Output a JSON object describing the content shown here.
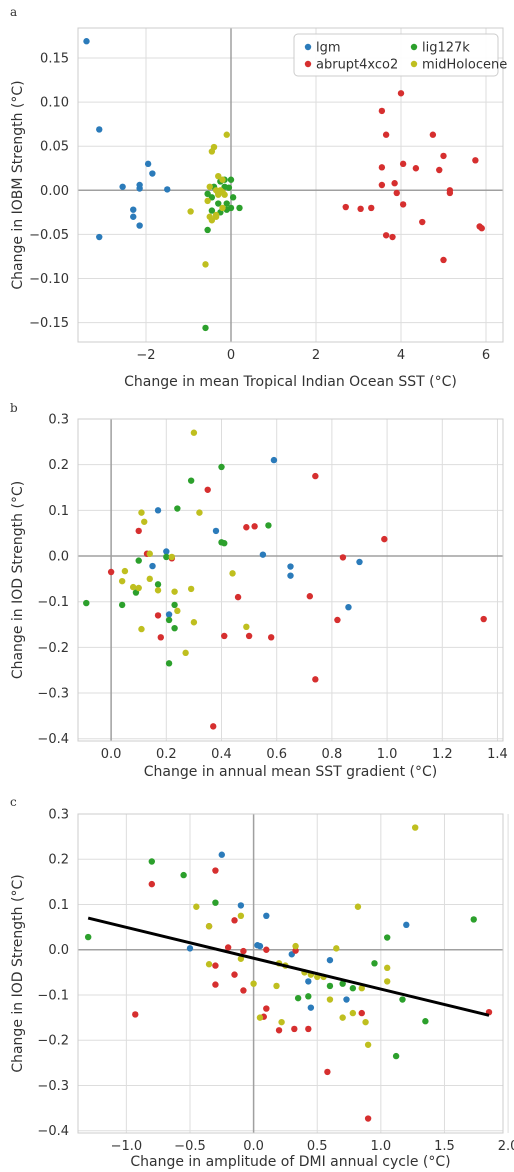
{
  "colors": {
    "lgm": "#2b7bba",
    "abrupt4xco2": "#d62f2f",
    "lig127k": "#2ca02c",
    "midHolocene": "#bfbf1f",
    "fit_line": "#000000",
    "grid": "#dddddd",
    "zero_line": "#a0a0a0"
  },
  "chart_data": [
    {
      "panel_label": "a",
      "type": "scatter",
      "xlabel": "Change in mean Tropical Indian Ocean SST (°C)",
      "ylabel": "Change in IOBM Strength (°C)",
      "xlim": [
        -3.6,
        6.4
      ],
      "ylim": [
        -0.172,
        0.184
      ],
      "xticks": [
        -2,
        0,
        2,
        4,
        6
      ],
      "xtick_labels": [
        "−2",
        "0",
        "2",
        "4",
        "6"
      ],
      "yticks": [
        -0.15,
        -0.1,
        -0.05,
        0.0,
        0.05,
        0.1,
        0.15
      ],
      "ytick_labels": [
        "−0.15",
        "−0.10",
        "−0.05",
        "0.00",
        "0.05",
        "0.10",
        "0.15"
      ],
      "grid": true,
      "legend": {
        "placement": "top-right",
        "columns": 2,
        "order": [
          "lgm",
          "lig127k",
          "abrupt4xco2",
          "midHolocene"
        ]
      },
      "series": [
        {
          "name": "lgm",
          "color_key": "lgm",
          "points": [
            [
              -3.4,
              0.169
            ],
            [
              -3.1,
              0.069
            ],
            [
              -3.1,
              -0.053
            ],
            [
              -2.55,
              0.004
            ],
            [
              -2.3,
              -0.022
            ],
            [
              -2.3,
              -0.03
            ],
            [
              -2.15,
              0.006
            ],
            [
              -2.15,
              0.002
            ],
            [
              -2.15,
              -0.04
            ],
            [
              -1.95,
              0.03
            ],
            [
              -1.85,
              0.019
            ],
            [
              -1.5,
              0.001
            ]
          ]
        },
        {
          "name": "abrupt4xco2",
          "color_key": "abrupt4xco2",
          "points": [
            [
              4.0,
              0.11
            ],
            [
              3.55,
              0.09
            ],
            [
              3.65,
              0.063
            ],
            [
              4.75,
              0.063
            ],
            [
              5.0,
              0.039
            ],
            [
              5.75,
              0.034
            ],
            [
              4.05,
              0.03
            ],
            [
              3.55,
              0.026
            ],
            [
              4.35,
              0.025
            ],
            [
              4.9,
              0.023
            ],
            [
              3.85,
              0.008
            ],
            [
              3.55,
              0.006
            ],
            [
              5.15,
              0.0
            ],
            [
              5.15,
              -0.003
            ],
            [
              3.9,
              -0.003
            ],
            [
              4.05,
              -0.016
            ],
            [
              2.7,
              -0.019
            ],
            [
              3.05,
              -0.021
            ],
            [
              3.3,
              -0.02
            ],
            [
              4.5,
              -0.036
            ],
            [
              5.85,
              -0.041
            ],
            [
              5.9,
              -0.043
            ],
            [
              3.65,
              -0.051
            ],
            [
              3.8,
              -0.053
            ],
            [
              5.0,
              -0.079
            ]
          ]
        },
        {
          "name": "lig127k",
          "color_key": "lig127k",
          "points": [
            [
              -0.25,
              0.01
            ],
            [
              -0.15,
              0.012
            ],
            [
              0.0,
              0.012
            ],
            [
              -0.4,
              0.004
            ],
            [
              -0.15,
              0.004
            ],
            [
              -0.05,
              0.003
            ],
            [
              -0.55,
              -0.004
            ],
            [
              -0.45,
              -0.008
            ],
            [
              -0.3,
              -0.003
            ],
            [
              0.05,
              -0.008
            ],
            [
              -0.3,
              -0.015
            ],
            [
              -0.1,
              -0.015
            ],
            [
              -0.45,
              -0.023
            ],
            [
              0.0,
              -0.02
            ],
            [
              0.2,
              -0.02
            ],
            [
              -0.25,
              -0.025
            ],
            [
              -0.1,
              -0.022
            ],
            [
              -0.55,
              -0.045
            ],
            [
              -0.6,
              -0.156
            ]
          ]
        },
        {
          "name": "midHolocene",
          "color_key": "midHolocene",
          "points": [
            [
              -0.1,
              0.063
            ],
            [
              -0.4,
              0.049
            ],
            [
              -0.45,
              0.044
            ],
            [
              -0.5,
              0.004
            ],
            [
              -0.3,
              0.016
            ],
            [
              -0.2,
              0.012
            ],
            [
              -0.35,
              0.0
            ],
            [
              -0.55,
              -0.012
            ],
            [
              -0.3,
              -0.005
            ],
            [
              -0.15,
              -0.005
            ],
            [
              -0.2,
              -0.002
            ],
            [
              -0.25,
              0.0
            ],
            [
              -0.95,
              -0.024
            ],
            [
              -0.5,
              -0.03
            ],
            [
              -0.35,
              -0.028
            ],
            [
              -0.45,
              -0.034
            ],
            [
              -0.35,
              -0.03
            ],
            [
              -0.2,
              -0.02
            ],
            [
              -0.6,
              -0.084
            ]
          ]
        }
      ]
    },
    {
      "panel_label": "b",
      "type": "scatter",
      "xlabel": "Change in annual mean SST gradient (°C)",
      "ylabel": "Change in IOD Strength (°C)",
      "xlim": [
        -0.12,
        1.42
      ],
      "ylim": [
        -0.405,
        0.3
      ],
      "xticks": [
        0.0,
        0.2,
        0.4,
        0.6,
        0.8,
        1.0,
        1.2,
        1.4
      ],
      "xtick_labels": [
        "0.0",
        "0.2",
        "0.4",
        "0.6",
        "0.8",
        "1.0",
        "1.2",
        "1.4"
      ],
      "yticks": [
        -0.4,
        -0.3,
        -0.2,
        -0.1,
        0.0,
        0.1,
        0.2,
        0.3
      ],
      "ytick_labels": [
        "−0.4",
        "−0.3",
        "−0.2",
        "−0.1",
        "0.0",
        "0.1",
        "0.2",
        "0.3"
      ],
      "grid": true,
      "series": [
        {
          "name": "lgm",
          "color_key": "lgm",
          "points": [
            [
              0.59,
              0.21
            ],
            [
              0.17,
              0.1
            ],
            [
              0.38,
              0.055
            ],
            [
              0.55,
              0.003
            ],
            [
              0.2,
              0.01
            ],
            [
              0.15,
              -0.022
            ],
            [
              0.65,
              -0.023
            ],
            [
              0.65,
              -0.043
            ],
            [
              0.21,
              -0.128
            ],
            [
              0.9,
              -0.013
            ],
            [
              0.86,
              -0.112
            ]
          ]
        },
        {
          "name": "abrupt4xco2",
          "color_key": "abrupt4xco2",
          "points": [
            [
              0.35,
              0.145
            ],
            [
              0.74,
              0.175
            ],
            [
              0.1,
              0.055
            ],
            [
              0.49,
              0.063
            ],
            [
              0.99,
              0.037
            ],
            [
              0.52,
              0.065
            ],
            [
              0.13,
              0.005
            ],
            [
              0.22,
              -0.005
            ],
            [
              0.0,
              -0.035
            ],
            [
              0.17,
              -0.13
            ],
            [
              0.18,
              -0.178
            ],
            [
              0.46,
              -0.09
            ],
            [
              0.41,
              -0.175
            ],
            [
              0.5,
              -0.175
            ],
            [
              0.58,
              -0.178
            ],
            [
              0.72,
              -0.088
            ],
            [
              0.84,
              -0.003
            ],
            [
              0.82,
              -0.14
            ],
            [
              0.74,
              -0.27
            ],
            [
              0.37,
              -0.373
            ],
            [
              1.35,
              -0.138
            ]
          ]
        },
        {
          "name": "lig127k",
          "color_key": "lig127k",
          "points": [
            [
              0.4,
              0.195
            ],
            [
              0.29,
              0.165
            ],
            [
              0.24,
              0.104
            ],
            [
              0.4,
              0.03
            ],
            [
              0.41,
              0.028
            ],
            [
              0.57,
              0.067
            ],
            [
              0.2,
              -0.002
            ],
            [
              0.1,
              -0.01
            ],
            [
              0.09,
              -0.08
            ],
            [
              0.17,
              -0.062
            ],
            [
              0.21,
              -0.14
            ],
            [
              0.23,
              -0.158
            ],
            [
              0.23,
              -0.107
            ],
            [
              0.04,
              -0.107
            ],
            [
              -0.09,
              -0.103
            ],
            [
              0.21,
              -0.235
            ]
          ]
        },
        {
          "name": "midHolocene",
          "color_key": "midHolocene",
          "points": [
            [
              0.3,
              0.27
            ],
            [
              0.12,
              0.075
            ],
            [
              0.11,
              0.095
            ],
            [
              0.32,
              0.095
            ],
            [
              0.14,
              0.005
            ],
            [
              0.22,
              -0.002
            ],
            [
              0.05,
              -0.033
            ],
            [
              0.04,
              -0.055
            ],
            [
              0.08,
              -0.068
            ],
            [
              0.14,
              -0.05
            ],
            [
              0.17,
              -0.075
            ],
            [
              0.1,
              -0.07
            ],
            [
              0.23,
              -0.078
            ],
            [
              0.29,
              -0.072
            ],
            [
              0.44,
              -0.038
            ],
            [
              0.11,
              -0.16
            ],
            [
              0.24,
              -0.12
            ],
            [
              0.3,
              -0.145
            ],
            [
              0.49,
              -0.155
            ],
            [
              0.27,
              -0.212
            ]
          ]
        }
      ]
    },
    {
      "panel_label": "c",
      "type": "scatter",
      "xlabel": "Change in amplitude of DMI annual cycle (°C)",
      "ylabel": "Change in IOD Strength (°C)",
      "xlim": [
        -1.38,
        1.96
      ],
      "ylim": [
        -0.405,
        0.3
      ],
      "xticks": [
        -1.0,
        -0.5,
        0.0,
        0.5,
        1.0,
        1.5,
        2.0
      ],
      "xtick_labels": [
        "−1.0",
        "−0.5",
        "0.0",
        "0.5",
        "1.0",
        "1.5",
        "2.0"
      ],
      "yticks": [
        -0.4,
        -0.3,
        -0.2,
        -0.1,
        0.0,
        0.1,
        0.2,
        0.3
      ],
      "ytick_labels": [
        "−0.4",
        "−0.3",
        "−0.2",
        "−0.1",
        "0.0",
        "0.1",
        "0.2",
        "0.3"
      ],
      "grid": true,
      "fit_line": {
        "x": [
          -1.3,
          1.85
        ],
        "y": [
          0.07,
          -0.145
        ]
      },
      "series": [
        {
          "name": "lgm",
          "color_key": "lgm",
          "points": [
            [
              -0.25,
              0.21
            ],
            [
              -0.1,
              0.098
            ],
            [
              0.1,
              0.075
            ],
            [
              0.03,
              0.01
            ],
            [
              -0.5,
              0.003
            ],
            [
              0.05,
              0.008
            ],
            [
              0.3,
              -0.01
            ],
            [
              0.6,
              -0.023
            ],
            [
              0.43,
              -0.07
            ],
            [
              0.45,
              -0.128
            ],
            [
              0.73,
              -0.11
            ],
            [
              1.2,
              0.055
            ]
          ]
        },
        {
          "name": "abrupt4xco2",
          "color_key": "abrupt4xco2",
          "points": [
            [
              -0.8,
              0.145
            ],
            [
              -0.3,
              0.175
            ],
            [
              -0.35,
              0.052
            ],
            [
              -0.15,
              0.065
            ],
            [
              -0.2,
              0.005
            ],
            [
              -0.08,
              -0.003
            ],
            [
              0.1,
              0.0
            ],
            [
              0.33,
              -0.002
            ],
            [
              -0.3,
              -0.035
            ],
            [
              -0.15,
              -0.055
            ],
            [
              -0.3,
              -0.077
            ],
            [
              -0.08,
              -0.09
            ],
            [
              0.1,
              -0.13
            ],
            [
              0.2,
              -0.178
            ],
            [
              0.32,
              -0.175
            ],
            [
              0.43,
              -0.175
            ],
            [
              0.08,
              -0.148
            ],
            [
              0.85,
              -0.14
            ],
            [
              0.58,
              -0.27
            ],
            [
              0.9,
              -0.373
            ],
            [
              -0.93,
              -0.143
            ],
            [
              1.85,
              -0.138
            ]
          ]
        },
        {
          "name": "lig127k",
          "color_key": "lig127k",
          "points": [
            [
              -0.8,
              0.195
            ],
            [
              -0.55,
              0.165
            ],
            [
              -0.3,
              0.104
            ],
            [
              1.73,
              0.067
            ],
            [
              1.05,
              0.027
            ],
            [
              -1.3,
              0.028
            ],
            [
              0.35,
              -0.107
            ],
            [
              0.43,
              -0.103
            ],
            [
              0.78,
              -0.085
            ],
            [
              0.95,
              -0.03
            ],
            [
              1.17,
              -0.11
            ],
            [
              1.35,
              -0.158
            ],
            [
              1.12,
              -0.235
            ],
            [
              0.7,
              -0.075
            ],
            [
              0.6,
              -0.08
            ]
          ]
        },
        {
          "name": "midHolocene",
          "color_key": "midHolocene",
          "points": [
            [
              1.27,
              0.27
            ],
            [
              0.82,
              0.095
            ],
            [
              -0.45,
              0.095
            ],
            [
              -0.1,
              0.075
            ],
            [
              -0.35,
              0.052
            ],
            [
              0.33,
              0.008
            ],
            [
              0.65,
              0.003
            ],
            [
              -0.35,
              -0.032
            ],
            [
              -0.1,
              -0.02
            ],
            [
              0.2,
              -0.03
            ],
            [
              0.4,
              -0.05
            ],
            [
              0.45,
              -0.055
            ],
            [
              0.5,
              -0.06
            ],
            [
              0.25,
              -0.035
            ],
            [
              0.55,
              -0.06
            ],
            [
              1.05,
              -0.04
            ],
            [
              0.85,
              -0.085
            ],
            [
              0.6,
              -0.11
            ],
            [
              0.7,
              -0.15
            ],
            [
              0.78,
              -0.14
            ],
            [
              0.88,
              -0.16
            ],
            [
              0.9,
              -0.21
            ],
            [
              0.0,
              -0.075
            ],
            [
              0.18,
              -0.08
            ],
            [
              0.05,
              -0.15
            ],
            [
              0.22,
              -0.16
            ],
            [
              1.05,
              -0.07
            ]
          ]
        }
      ]
    }
  ]
}
